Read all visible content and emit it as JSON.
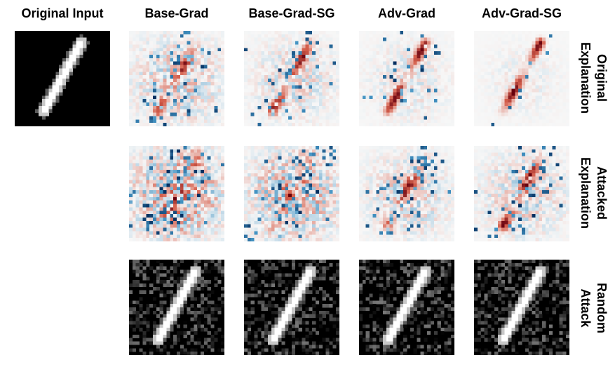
{
  "columns": [
    "Original Input",
    "Base-Grad",
    "Base-Grad-SG",
    "Adv-Grad",
    "Adv-Grad-SG"
  ],
  "rows": [
    {
      "line1": "Original",
      "line2": "Explanation"
    },
    {
      "line1": "Attacked",
      "line2": "Explanation"
    },
    {
      "line1": "Random",
      "line2": "Attack"
    }
  ],
  "colors": {
    "positive": "#b2182b",
    "negative": "#2166ac",
    "background": "#f7f7f7",
    "digit_background": "#000000",
    "digit_stroke": "#ffffff"
  },
  "panels": {
    "input": "mnist-digit",
    "explanations": "heatmap",
    "random_attack": "noisy-mnist-digit"
  }
}
